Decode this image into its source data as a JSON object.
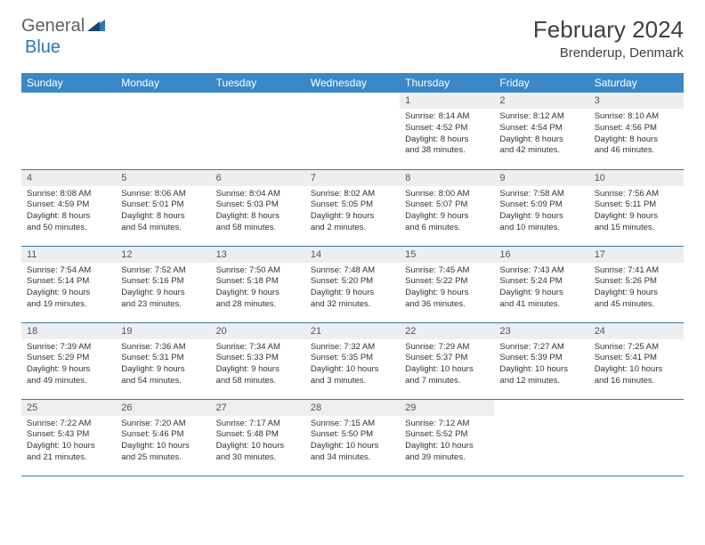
{
  "logo": {
    "general": "General",
    "blue": "Blue"
  },
  "title": "February 2024",
  "location": "Brenderup, Denmark",
  "colors": {
    "header_bg": "#3b88c8",
    "header_text": "#ffffff",
    "daynum_bg": "#eceeef",
    "border": "#3b78ad",
    "logo_blue": "#2d76b6",
    "logo_gray": "#606060"
  },
  "daysOfWeek": [
    "Sunday",
    "Monday",
    "Tuesday",
    "Wednesday",
    "Thursday",
    "Friday",
    "Saturday"
  ],
  "weeks": [
    [
      null,
      null,
      null,
      null,
      {
        "n": "1",
        "sunrise": "8:14 AM",
        "sunset": "4:52 PM",
        "dl1": "Daylight: 8 hours",
        "dl2": "and 38 minutes."
      },
      {
        "n": "2",
        "sunrise": "8:12 AM",
        "sunset": "4:54 PM",
        "dl1": "Daylight: 8 hours",
        "dl2": "and 42 minutes."
      },
      {
        "n": "3",
        "sunrise": "8:10 AM",
        "sunset": "4:56 PM",
        "dl1": "Daylight: 8 hours",
        "dl2": "and 46 minutes."
      }
    ],
    [
      {
        "n": "4",
        "sunrise": "8:08 AM",
        "sunset": "4:59 PM",
        "dl1": "Daylight: 8 hours",
        "dl2": "and 50 minutes."
      },
      {
        "n": "5",
        "sunrise": "8:06 AM",
        "sunset": "5:01 PM",
        "dl1": "Daylight: 8 hours",
        "dl2": "and 54 minutes."
      },
      {
        "n": "6",
        "sunrise": "8:04 AM",
        "sunset": "5:03 PM",
        "dl1": "Daylight: 8 hours",
        "dl2": "and 58 minutes."
      },
      {
        "n": "7",
        "sunrise": "8:02 AM",
        "sunset": "5:05 PM",
        "dl1": "Daylight: 9 hours",
        "dl2": "and 2 minutes."
      },
      {
        "n": "8",
        "sunrise": "8:00 AM",
        "sunset": "5:07 PM",
        "dl1": "Daylight: 9 hours",
        "dl2": "and 6 minutes."
      },
      {
        "n": "9",
        "sunrise": "7:58 AM",
        "sunset": "5:09 PM",
        "dl1": "Daylight: 9 hours",
        "dl2": "and 10 minutes."
      },
      {
        "n": "10",
        "sunrise": "7:56 AM",
        "sunset": "5:11 PM",
        "dl1": "Daylight: 9 hours",
        "dl2": "and 15 minutes."
      }
    ],
    [
      {
        "n": "11",
        "sunrise": "7:54 AM",
        "sunset": "5:14 PM",
        "dl1": "Daylight: 9 hours",
        "dl2": "and 19 minutes."
      },
      {
        "n": "12",
        "sunrise": "7:52 AM",
        "sunset": "5:16 PM",
        "dl1": "Daylight: 9 hours",
        "dl2": "and 23 minutes."
      },
      {
        "n": "13",
        "sunrise": "7:50 AM",
        "sunset": "5:18 PM",
        "dl1": "Daylight: 9 hours",
        "dl2": "and 28 minutes."
      },
      {
        "n": "14",
        "sunrise": "7:48 AM",
        "sunset": "5:20 PM",
        "dl1": "Daylight: 9 hours",
        "dl2": "and 32 minutes."
      },
      {
        "n": "15",
        "sunrise": "7:45 AM",
        "sunset": "5:22 PM",
        "dl1": "Daylight: 9 hours",
        "dl2": "and 36 minutes."
      },
      {
        "n": "16",
        "sunrise": "7:43 AM",
        "sunset": "5:24 PM",
        "dl1": "Daylight: 9 hours",
        "dl2": "and 41 minutes."
      },
      {
        "n": "17",
        "sunrise": "7:41 AM",
        "sunset": "5:26 PM",
        "dl1": "Daylight: 9 hours",
        "dl2": "and 45 minutes."
      }
    ],
    [
      {
        "n": "18",
        "sunrise": "7:39 AM",
        "sunset": "5:29 PM",
        "dl1": "Daylight: 9 hours",
        "dl2": "and 49 minutes."
      },
      {
        "n": "19",
        "sunrise": "7:36 AM",
        "sunset": "5:31 PM",
        "dl1": "Daylight: 9 hours",
        "dl2": "and 54 minutes."
      },
      {
        "n": "20",
        "sunrise": "7:34 AM",
        "sunset": "5:33 PM",
        "dl1": "Daylight: 9 hours",
        "dl2": "and 58 minutes."
      },
      {
        "n": "21",
        "sunrise": "7:32 AM",
        "sunset": "5:35 PM",
        "dl1": "Daylight: 10 hours",
        "dl2": "and 3 minutes."
      },
      {
        "n": "22",
        "sunrise": "7:29 AM",
        "sunset": "5:37 PM",
        "dl1": "Daylight: 10 hours",
        "dl2": "and 7 minutes."
      },
      {
        "n": "23",
        "sunrise": "7:27 AM",
        "sunset": "5:39 PM",
        "dl1": "Daylight: 10 hours",
        "dl2": "and 12 minutes."
      },
      {
        "n": "24",
        "sunrise": "7:25 AM",
        "sunset": "5:41 PM",
        "dl1": "Daylight: 10 hours",
        "dl2": "and 16 minutes."
      }
    ],
    [
      {
        "n": "25",
        "sunrise": "7:22 AM",
        "sunset": "5:43 PM",
        "dl1": "Daylight: 10 hours",
        "dl2": "and 21 minutes."
      },
      {
        "n": "26",
        "sunrise": "7:20 AM",
        "sunset": "5:46 PM",
        "dl1": "Daylight: 10 hours",
        "dl2": "and 25 minutes."
      },
      {
        "n": "27",
        "sunrise": "7:17 AM",
        "sunset": "5:48 PM",
        "dl1": "Daylight: 10 hours",
        "dl2": "and 30 minutes."
      },
      {
        "n": "28",
        "sunrise": "7:15 AM",
        "sunset": "5:50 PM",
        "dl1": "Daylight: 10 hours",
        "dl2": "and 34 minutes."
      },
      {
        "n": "29",
        "sunrise": "7:12 AM",
        "sunset": "5:52 PM",
        "dl1": "Daylight: 10 hours",
        "dl2": "and 39 minutes."
      },
      null,
      null
    ]
  ]
}
